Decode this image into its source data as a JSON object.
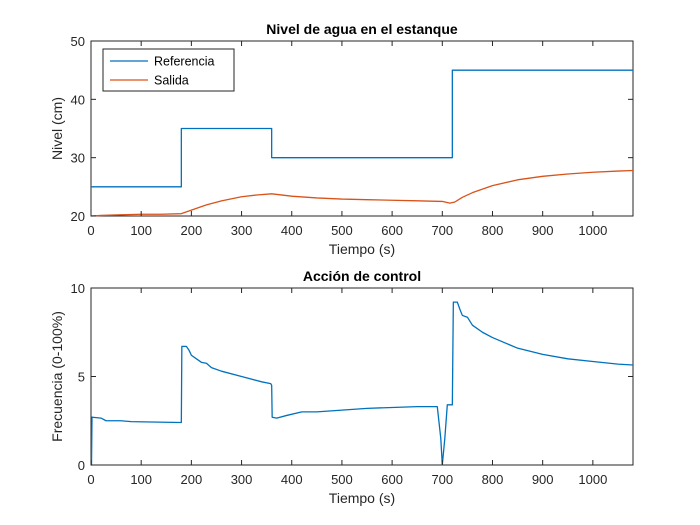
{
  "chart_data": [
    {
      "type": "line",
      "title": "Nivel de agua en el estanque",
      "xlabel": "Tiempo (s)",
      "ylabel": "Nivel (cm)",
      "xlim": [
        0,
        1080
      ],
      "ylim": [
        20,
        50
      ],
      "xticks": [
        0,
        100,
        200,
        300,
        400,
        500,
        600,
        700,
        800,
        900,
        1000
      ],
      "yticks": [
        20,
        30,
        40,
        50
      ],
      "legend": "top-left",
      "grid": false,
      "series": [
        {
          "name": "Referencia",
          "color": "#0072BD",
          "x": [
            0,
            180,
            180,
            360,
            360,
            720,
            720,
            1080
          ],
          "y": [
            25,
            25,
            35,
            35,
            30,
            30,
            45,
            45
          ]
        },
        {
          "name": "Salida",
          "color": "#D95319",
          "x": [
            0,
            20,
            60,
            100,
            140,
            180,
            200,
            230,
            260,
            300,
            330,
            360,
            400,
            450,
            500,
            550,
            600,
            650,
            700,
            715,
            725,
            740,
            760,
            800,
            850,
            900,
            950,
            1000,
            1050,
            1080
          ],
          "y": [
            20,
            20.1,
            20.2,
            20.3,
            20.3,
            20.4,
            21.0,
            21.9,
            22.6,
            23.3,
            23.6,
            23.8,
            23.4,
            23.1,
            22.9,
            22.8,
            22.7,
            22.6,
            22.5,
            22.2,
            22.4,
            23.2,
            24.0,
            25.2,
            26.2,
            26.8,
            27.2,
            27.5,
            27.7,
            27.8
          ]
        }
      ]
    },
    {
      "type": "line",
      "title": "Acción de control",
      "xlabel": "Tiempo (s)",
      "ylabel": "Frecuencia (0-100%)",
      "xlim": [
        0,
        1080
      ],
      "ylim": [
        0,
        10
      ],
      "xticks": [
        0,
        100,
        200,
        300,
        400,
        500,
        600,
        700,
        800,
        900,
        1000
      ],
      "yticks": [
        0,
        5,
        10
      ],
      "grid": false,
      "series": [
        {
          "color": "#0072BD",
          "x": [
            0,
            1,
            2,
            3,
            20,
            30,
            40,
            60,
            80,
            120,
            178,
            180,
            181,
            190,
            195,
            200,
            210,
            220,
            230,
            240,
            260,
            300,
            340,
            358,
            360,
            361,
            370,
            390,
            420,
            450,
            500,
            550,
            600,
            650,
            690,
            697,
            700,
            705,
            710,
            715,
            717,
            720,
            722,
            730,
            735,
            740,
            750,
            760,
            780,
            800,
            850,
            900,
            950,
            1000,
            1050,
            1080
          ],
          "y": [
            0,
            0,
            2.7,
            2.7,
            2.65,
            2.5,
            2.5,
            2.5,
            2.45,
            2.43,
            2.4,
            2.4,
            6.7,
            6.7,
            6.5,
            6.2,
            6.0,
            5.8,
            5.75,
            5.5,
            5.3,
            5.0,
            4.7,
            4.6,
            4.5,
            2.7,
            2.65,
            2.8,
            3.0,
            3.0,
            3.1,
            3.2,
            3.25,
            3.3,
            3.3,
            1.5,
            0,
            1.5,
            3.4,
            3.4,
            3.4,
            3.4,
            9.2,
            9.2,
            8.8,
            8.45,
            8.35,
            7.9,
            7.5,
            7.2,
            6.6,
            6.25,
            6.0,
            5.85,
            5.7,
            5.65
          ]
        }
      ]
    }
  ]
}
